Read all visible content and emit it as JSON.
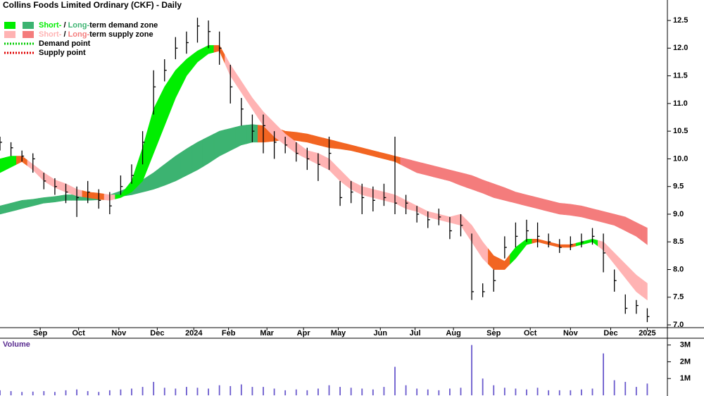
{
  "chart_data": {
    "type": "ohlc",
    "title": "Collins Foods Limited Ordinary (CKF) - Daily",
    "legend": [
      {
        "parts": [
          "Short-",
          " / ",
          "Long-",
          "term demand zone"
        ],
        "colors": [
          "#00ee00",
          "#3cb371"
        ]
      },
      {
        "parts": [
          "Short-",
          " / ",
          "Long-",
          "term supply zone"
        ],
        "colors": [
          "#ffb3b3",
          "#f47c7c"
        ]
      }
    ],
    "points_legend": [
      {
        "label": "Demand point",
        "color": "#00cc00"
      },
      {
        "label": "Supply point",
        "color": "#e00000"
      }
    ],
    "x": [
      0,
      6,
      12,
      18,
      24,
      30,
      36,
      42,
      48,
      54,
      60,
      66,
      72,
      78,
      84,
      90,
      96,
      102,
      108,
      114,
      120,
      126,
      132,
      138,
      144,
      150,
      156,
      162,
      168,
      174,
      180,
      186,
      192,
      198,
      204,
      210,
      216,
      222,
      228,
      234,
      240,
      246,
      252,
      258,
      264,
      270,
      276,
      282,
      288,
      294,
      300,
      306,
      312,
      318,
      324,
      330,
      336,
      342,
      348,
      354
    ],
    "high": [
      10.4,
      10.3,
      10.15,
      10.1,
      9.75,
      9.65,
      9.55,
      9.5,
      9.6,
      9.45,
      9.4,
      9.7,
      9.9,
      10.5,
      11.6,
      11.8,
      12.2,
      12.3,
      12.55,
      12.5,
      12.3,
      11.7,
      11.1,
      10.8,
      10.8,
      10.5,
      10.4,
      10.3,
      10.2,
      10.1,
      10.4,
      9.6,
      9.6,
      9.55,
      9.5,
      9.55,
      10.4,
      9.35,
      9.15,
      9.05,
      9.1,
      8.95,
      9.0,
      8.65,
      7.75,
      8.0,
      8.6,
      8.85,
      8.9,
      8.85,
      8.65,
      8.55,
      8.6,
      8.65,
      8.75,
      8.65,
      8.0,
      7.55,
      7.45,
      7.3
    ],
    "low": [
      10.15,
      10.05,
      9.95,
      9.75,
      9.45,
      9.35,
      9.2,
      8.95,
      9.2,
      9.1,
      9.0,
      9.35,
      9.55,
      9.9,
      10.8,
      11.4,
      11.8,
      11.9,
      12.1,
      12.0,
      11.7,
      11.0,
      10.6,
      10.3,
      10.1,
      10.0,
      10.1,
      9.95,
      9.8,
      9.6,
      9.8,
      9.15,
      9.2,
      9.0,
      9.05,
      9.15,
      9.0,
      9.0,
      8.85,
      8.75,
      8.8,
      8.55,
      8.6,
      7.45,
      7.5,
      7.6,
      8.2,
      8.4,
      8.5,
      8.4,
      8.4,
      8.3,
      8.35,
      8.4,
      8.45,
      7.95,
      7.6,
      7.2,
      7.2,
      7.05
    ],
    "close": [
      10.3,
      10.2,
      10.05,
      10.0,
      9.6,
      9.5,
      9.4,
      9.3,
      9.4,
      9.25,
      9.15,
      9.5,
      9.7,
      10.3,
      11.3,
      11.6,
      12.0,
      12.1,
      12.4,
      12.3,
      12.0,
      11.3,
      10.9,
      10.5,
      10.6,
      10.3,
      10.25,
      10.1,
      10.0,
      9.9,
      10.1,
      9.3,
      9.4,
      9.3,
      9.25,
      9.3,
      9.2,
      9.2,
      9.0,
      8.9,
      8.95,
      8.7,
      8.8,
      7.6,
      7.6,
      7.8,
      8.4,
      8.6,
      8.7,
      8.6,
      8.5,
      8.4,
      8.45,
      8.5,
      8.6,
      8.3,
      7.8,
      7.3,
      7.35,
      7.15
    ],
    "bar_color": "#000000",
    "short_upper": [
      10.0,
      10.05,
      10.05,
      9.9,
      9.75,
      9.62,
      9.55,
      9.45,
      9.4,
      9.38,
      9.35,
      9.35,
      9.6,
      10.2,
      10.9,
      11.3,
      11.6,
      11.8,
      11.95,
      12.05,
      12.05,
      11.7,
      11.4,
      11.1,
      10.85,
      10.65,
      10.45,
      10.3,
      10.15,
      10.1,
      10.0,
      9.8,
      9.6,
      9.5,
      9.45,
      9.4,
      9.35,
      9.25,
      9.15,
      9.05,
      9.0,
      8.95,
      9.0,
      8.8,
      8.5,
      8.25,
      8.15,
      8.4,
      8.55,
      8.55,
      8.5,
      8.45,
      8.45,
      8.5,
      8.55,
      8.5,
      8.3,
      8.1,
      7.9,
      7.75
    ],
    "short_lower": [
      9.75,
      9.85,
      9.95,
      9.8,
      9.6,
      9.48,
      9.4,
      9.33,
      9.3,
      9.27,
      9.25,
      9.3,
      9.4,
      9.6,
      10.1,
      10.6,
      11.1,
      11.5,
      11.75,
      11.9,
      11.95,
      11.5,
      11.2,
      10.9,
      10.6,
      10.4,
      10.25,
      10.1,
      10.0,
      9.9,
      9.8,
      9.6,
      9.45,
      9.35,
      9.3,
      9.25,
      9.2,
      9.1,
      9.05,
      8.95,
      8.9,
      8.85,
      8.8,
      8.5,
      8.2,
      8.0,
      8.0,
      8.2,
      8.45,
      8.5,
      8.45,
      8.4,
      8.4,
      8.45,
      8.5,
      8.35,
      8.1,
      7.85,
      7.6,
      7.45
    ],
    "short_colors": [
      "#00ee00",
      "#00ee00",
      "#f26522",
      "#ffb3b3",
      "#ffb3b3",
      "#ffb3b3",
      "#ffb3b3",
      "#ffb3b3",
      "#f26522",
      "#f26522",
      "#ffb3b3",
      "#00ee00",
      "#00ee00",
      "#00ee00",
      "#00ee00",
      "#00ee00",
      "#00ee00",
      "#00ee00",
      "#00ee00",
      "#00ee00",
      "#f26522",
      "#ffb3b3",
      "#ffb3b3",
      "#ffb3b3",
      "#ffb3b3",
      "#ffb3b3",
      "#ffb3b3",
      "#ffb3b3",
      "#ffb3b3",
      "#ffb3b3",
      "#ffb3b3",
      "#ffb3b3",
      "#ffb3b3",
      "#ffb3b3",
      "#ffb3b3",
      "#ffb3b3",
      "#ffb3b3",
      "#ffb3b3",
      "#ffb3b3",
      "#ffb3b3",
      "#ffb3b3",
      "#ffb3b3",
      "#ffb3b3",
      "#ffb3b3",
      "#ffb3b3",
      "#f26522",
      "#f26522",
      "#00ee00",
      "#00ee00",
      "#f26522",
      "#f26522",
      "#f26522",
      "#f26522",
      "#00ee00",
      "#00ee00",
      "#ffb3b3",
      "#ffb3b3",
      "#ffb3b3",
      "#ffb3b3",
      "#ffb3b3"
    ],
    "long_upper": [
      9.15,
      9.2,
      9.25,
      9.27,
      9.3,
      9.32,
      9.35,
      9.35,
      9.35,
      9.35,
      9.35,
      9.42,
      9.5,
      9.62,
      9.75,
      9.9,
      10.05,
      10.18,
      10.3,
      10.4,
      10.5,
      10.55,
      10.6,
      10.62,
      10.6,
      10.57,
      10.5,
      10.48,
      10.45,
      10.4,
      10.35,
      10.3,
      10.25,
      10.2,
      10.15,
      10.1,
      10.05,
      10.0,
      9.95,
      9.9,
      9.85,
      9.8,
      9.75,
      9.7,
      9.62,
      9.55,
      9.48,
      9.4,
      9.35,
      9.3,
      9.25,
      9.2,
      9.18,
      9.15,
      9.1,
      9.05,
      9.0,
      8.95,
      8.85,
      8.75
    ],
    "long_lower": [
      9.0,
      9.05,
      9.1,
      9.15,
      9.2,
      9.22,
      9.25,
      9.25,
      9.25,
      9.26,
      9.28,
      9.32,
      9.35,
      9.4,
      9.45,
      9.52,
      9.6,
      9.7,
      9.8,
      9.92,
      10.05,
      10.15,
      10.25,
      10.3,
      10.3,
      10.32,
      10.35,
      10.33,
      10.3,
      10.25,
      10.2,
      10.18,
      10.15,
      10.1,
      10.05,
      10.0,
      9.95,
      9.85,
      9.75,
      9.7,
      9.65,
      9.6,
      9.52,
      9.45,
      9.38,
      9.3,
      9.25,
      9.2,
      9.15,
      9.1,
      9.05,
      9.0,
      8.98,
      8.95,
      8.9,
      8.85,
      8.8,
      8.7,
      8.6,
      8.45
    ],
    "long_colors": [
      "#3cb371",
      "#3cb371",
      "#3cb371",
      "#3cb371",
      "#3cb371",
      "#3cb371",
      "#3cb371",
      "#3cb371",
      "#3cb371",
      "#3cb371",
      "#3cb371",
      "#3cb371",
      "#3cb371",
      "#3cb371",
      "#3cb371",
      "#3cb371",
      "#3cb371",
      "#3cb371",
      "#3cb371",
      "#3cb371",
      "#3cb371",
      "#3cb371",
      "#3cb371",
      "#3cb371",
      "#f26522",
      "#f26522",
      "#f26522",
      "#f26522",
      "#f26522",
      "#f26522",
      "#f26522",
      "#f26522",
      "#f26522",
      "#f26522",
      "#f26522",
      "#f26522",
      "#f26522",
      "#f47c7c",
      "#f47c7c",
      "#f47c7c",
      "#f47c7c",
      "#f47c7c",
      "#f47c7c",
      "#f47c7c",
      "#f47c7c",
      "#f47c7c",
      "#f47c7c",
      "#f47c7c",
      "#f47c7c",
      "#f47c7c",
      "#f47c7c",
      "#f47c7c",
      "#f47c7c",
      "#f47c7c",
      "#f47c7c",
      "#f47c7c",
      "#f47c7c",
      "#f47c7c",
      "#f47c7c",
      "#f47c7c"
    ],
    "xlim": [
      0,
      365
    ],
    "xticks": [
      {
        "value": 22,
        "label": "Sep"
      },
      {
        "value": 43,
        "label": "Oct"
      },
      {
        "value": 65,
        "label": "Nov"
      },
      {
        "value": 86,
        "label": "Dec"
      },
      {
        "value": 106,
        "label": "2024"
      },
      {
        "value": 125,
        "label": "Feb"
      },
      {
        "value": 146,
        "label": "Mar"
      },
      {
        "value": 166,
        "label": "Apr"
      },
      {
        "value": 185,
        "label": "May"
      },
      {
        "value": 208,
        "label": "Jun"
      },
      {
        "value": 227,
        "label": "Jul"
      },
      {
        "value": 248,
        "label": "Aug"
      },
      {
        "value": 270,
        "label": "Sep"
      },
      {
        "value": 290,
        "label": "Oct"
      },
      {
        "value": 312,
        "label": "Nov"
      },
      {
        "value": 334,
        "label": "Dec"
      },
      {
        "value": 354,
        "label": "2025"
      }
    ],
    "ylim": [
      6.95,
      12.87
    ],
    "yticks": [
      {
        "value": 7,
        "label": "7.0"
      },
      7.5,
      {
        "value": 8,
        "label": "8.0"
      },
      8.5,
      {
        "value": 9,
        "label": "9.0"
      },
      9.5,
      {
        "value": 10,
        "label": "10.0"
      },
      10.5,
      {
        "value": 11,
        "label": "11.0"
      },
      11.5,
      {
        "value": 12,
        "label": "12.0"
      },
      12.5
    ],
    "volume_label": "Volume",
    "volume": [
      300000,
      250000,
      200000,
      220000,
      250000,
      200000,
      300000,
      350000,
      250000,
      200000,
      300000,
      350000,
      400000,
      500000,
      800000,
      450000,
      400000,
      500000,
      450000,
      400000,
      600000,
      550000,
      650000,
      500000,
      500000,
      400000,
      300000,
      350000,
      300000,
      400000,
      600000,
      500000,
      450000,
      400000,
      350000,
      500000,
      1700000,
      600000,
      400000,
      350000,
      300000,
      400000,
      450000,
      3000000,
      1000000,
      600000,
      450000,
      400000,
      350000,
      450000,
      300000,
      300000,
      300000,
      350000,
      400000,
      2500000,
      900000,
      800000,
      500000,
      700000
    ],
    "volume_color": "#6a5acd",
    "volume_ylim": [
      0,
      3330000
    ],
    "volume_yticks": [
      {
        "value": 1000000,
        "label": "1M"
      },
      {
        "value": 2000000,
        "label": "2M"
      },
      {
        "value": 3000000,
        "label": "3M"
      }
    ]
  }
}
